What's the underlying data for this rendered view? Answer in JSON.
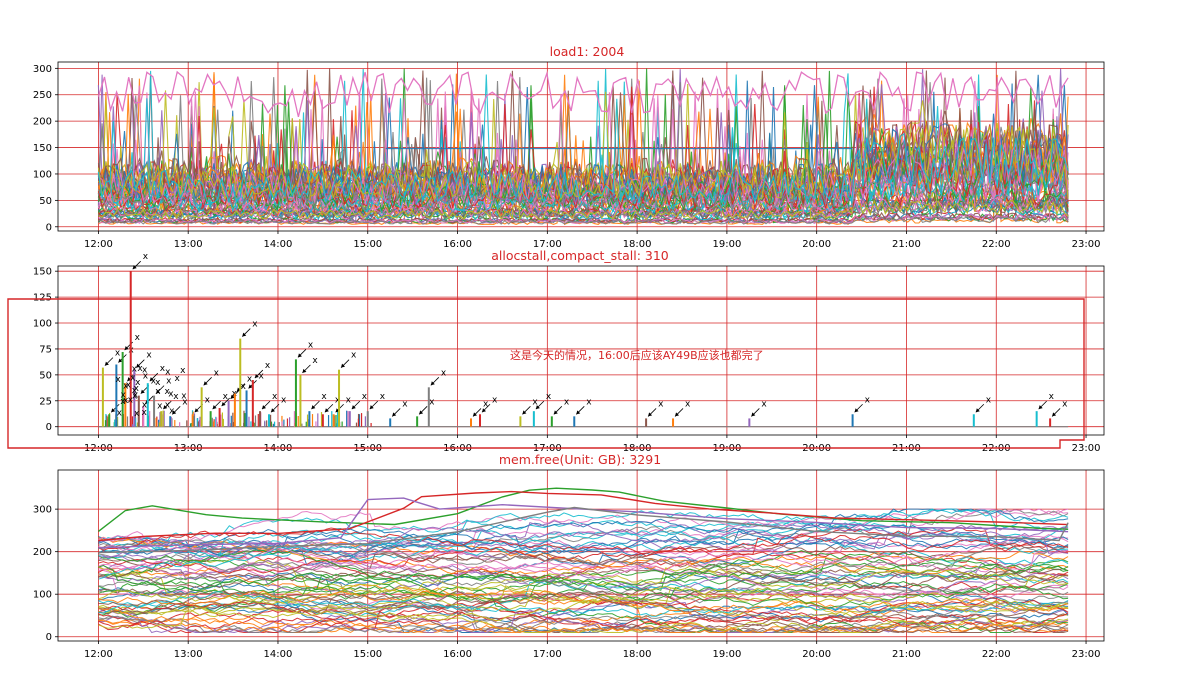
{
  "figure": {
    "x_ticks": [
      "12:00",
      "13:00",
      "14:00",
      "15:00",
      "16:00",
      "17:00",
      "18:00",
      "19:00",
      "20:00",
      "21:00",
      "22:00",
      "23:00"
    ]
  },
  "chart_data": [
    {
      "type": "line",
      "title": "load1: 2004",
      "series_count": 2004,
      "x_range_hours": [
        11.55,
        23.2
      ],
      "data_end_hour": 22.8,
      "ylim": [
        -8,
        312
      ],
      "y_ticks": [
        0,
        50,
        100,
        150,
        200,
        250,
        300
      ],
      "grid": true,
      "grid_color": "#d62728",
      "baseline_top": 60,
      "notes": "Many overlapping series, most between 0 and 150; several spike to the 300 cap; one pink series runs 200-300 across the day."
    },
    {
      "type": "line",
      "title": "allocstall,compact_stall: 310",
      "series_count": 310,
      "x_range_hours": [
        11.55,
        23.2
      ],
      "ylim": [
        -8,
        155
      ],
      "y_ticks": [
        0,
        25,
        50,
        75,
        100,
        125,
        150
      ],
      "grid": true,
      "grid_color": "#d62728",
      "peaks": [
        {
          "t": 12.05,
          "y": 57,
          "c": "#bcbd22"
        },
        {
          "t": 12.12,
          "y": 12,
          "c": "#2ca02c"
        },
        {
          "t": 12.2,
          "y": 60,
          "c": "#1f77b4"
        },
        {
          "t": 12.27,
          "y": 72,
          "c": "#2ca02c"
        },
        {
          "t": 12.3,
          "y": 42,
          "c": "#ff7f0e"
        },
        {
          "t": 12.36,
          "y": 150,
          "c": "#d62728"
        },
        {
          "t": 12.4,
          "y": 55,
          "c": "#9467bd"
        },
        {
          "t": 12.45,
          "y": 30,
          "c": "#8c564b"
        },
        {
          "t": 12.5,
          "y": 20,
          "c": "#e377c2"
        },
        {
          "t": 12.55,
          "y": 42,
          "c": "#17becf"
        },
        {
          "t": 12.62,
          "y": 30,
          "c": "#7f7f7f"
        },
        {
          "t": 12.7,
          "y": 15,
          "c": "#bcbd22"
        },
        {
          "t": 12.8,
          "y": 10,
          "c": "#1f77b4"
        },
        {
          "t": 13.05,
          "y": 12,
          "c": "#ff7f0e"
        },
        {
          "t": 13.15,
          "y": 38,
          "c": "#bcbd22"
        },
        {
          "t": 13.25,
          "y": 15,
          "c": "#2ca02c"
        },
        {
          "t": 13.35,
          "y": 18,
          "c": "#d62728"
        },
        {
          "t": 13.45,
          "y": 25,
          "c": "#9467bd"
        },
        {
          "t": 13.52,
          "y": 32,
          "c": "#ff7f0e"
        },
        {
          "t": 13.58,
          "y": 85,
          "c": "#bcbd22"
        },
        {
          "t": 13.65,
          "y": 35,
          "c": "#1f77b4"
        },
        {
          "t": 13.72,
          "y": 45,
          "c": "#d62728"
        },
        {
          "t": 13.8,
          "y": 15,
          "c": "#8c564b"
        },
        {
          "t": 13.9,
          "y": 12,
          "c": "#17becf"
        },
        {
          "t": 14.2,
          "y": 65,
          "c": "#2ca02c"
        },
        {
          "t": 14.25,
          "y": 50,
          "c": "#bcbd22"
        },
        {
          "t": 14.35,
          "y": 15,
          "c": "#1f77b4"
        },
        {
          "t": 14.5,
          "y": 12,
          "c": "#d62728"
        },
        {
          "t": 14.62,
          "y": 12,
          "c": "#ff7f0e"
        },
        {
          "t": 14.68,
          "y": 55,
          "c": "#bcbd22"
        },
        {
          "t": 14.8,
          "y": 15,
          "c": "#9467bd"
        },
        {
          "t": 15.0,
          "y": 15,
          "c": "#7f7f7f"
        },
        {
          "t": 15.25,
          "y": 8,
          "c": "#1f77b4"
        },
        {
          "t": 15.55,
          "y": 10,
          "c": "#2ca02c"
        },
        {
          "t": 15.68,
          "y": 38,
          "c": "#7f7f7f"
        },
        {
          "t": 16.15,
          "y": 8,
          "c": "#ff7f0e"
        },
        {
          "t": 16.25,
          "y": 12,
          "c": "#d62728"
        },
        {
          "t": 16.7,
          "y": 10,
          "c": "#bcbd22"
        },
        {
          "t": 16.85,
          "y": 15,
          "c": "#17becf"
        },
        {
          "t": 17.05,
          "y": 10,
          "c": "#2ca02c"
        },
        {
          "t": 17.3,
          "y": 10,
          "c": "#1f77b4"
        },
        {
          "t": 18.1,
          "y": 8,
          "c": "#8c564b"
        },
        {
          "t": 18.4,
          "y": 8,
          "c": "#ff7f0e"
        },
        {
          "t": 19.25,
          "y": 8,
          "c": "#9467bd"
        },
        {
          "t": 20.4,
          "y": 12,
          "c": "#1f77b4"
        },
        {
          "t": 21.75,
          "y": 12,
          "c": "#17becf"
        },
        {
          "t": 22.45,
          "y": 15,
          "c": "#17becf"
        },
        {
          "t": 22.6,
          "y": 8,
          "c": "#d62728"
        }
      ],
      "annotation_text": "这是今天的情况，16:00后应该AY49B应该也都完了",
      "annotation_color": "#d62728"
    },
    {
      "type": "line",
      "title": "mem.free(Unit: GB): 3291",
      "series_count": 3291,
      "x_range_hours": [
        11.55,
        23.2
      ],
      "data_end_hour": 22.8,
      "ylim": [
        -10,
        392
      ],
      "y_ticks": [
        0,
        100,
        200,
        300
      ],
      "grid": true,
      "grid_color": "#d62728",
      "highlight_series": [
        {
          "c": "#2ca02c",
          "pts": [
            [
              12.0,
              250
            ],
            [
              12.3,
              300
            ],
            [
              12.6,
              305
            ],
            [
              13.2,
              290
            ],
            [
              13.6,
              280
            ],
            [
              14.5,
              270
            ],
            [
              15.3,
              265
            ],
            [
              16.0,
              290
            ],
            [
              16.5,
              330
            ],
            [
              16.8,
              345
            ],
            [
              17.1,
              350
            ],
            [
              17.5,
              345
            ],
            [
              17.8,
              340
            ],
            [
              18.3,
              320
            ],
            [
              19.0,
              300
            ],
            [
              19.6,
              290
            ],
            [
              20.5,
              270
            ],
            [
              21.5,
              265
            ],
            [
              22.5,
              255
            ],
            [
              22.8,
              255
            ]
          ]
        },
        {
          "c": "#d62728",
          "pts": [
            [
              12.0,
              230
            ],
            [
              12.5,
              235
            ],
            [
              13.3,
              240
            ],
            [
              14.0,
              245
            ],
            [
              14.8,
              250
            ],
            [
              15.4,
              300
            ],
            [
              15.6,
              330
            ],
            [
              16.2,
              340
            ],
            [
              16.6,
              345
            ],
            [
              17.0,
              340
            ],
            [
              17.6,
              330
            ],
            [
              18.2,
              310
            ],
            [
              18.8,
              300
            ],
            [
              19.5,
              290
            ],
            [
              20.2,
              280
            ],
            [
              21.0,
              275
            ],
            [
              22.0,
              270
            ],
            [
              22.8,
              265
            ]
          ]
        },
        {
          "c": "#9467bd",
          "pts": [
            [
              12.0,
              210
            ],
            [
              13.0,
              215
            ],
            [
              14.0,
              220
            ],
            [
              14.7,
              230
            ],
            [
              15.0,
              320
            ],
            [
              15.4,
              325
            ],
            [
              15.8,
              300
            ],
            [
              16.5,
              310
            ],
            [
              17.3,
              300
            ],
            [
              18.0,
              290
            ],
            [
              19.0,
              275
            ],
            [
              20.0,
              265
            ],
            [
              21.0,
              260
            ],
            [
              22.0,
              255
            ],
            [
              22.8,
              250
            ]
          ]
        },
        {
          "c": "#7f7f7f",
          "pts": [
            [
              12.0,
              200
            ],
            [
              13.0,
              205
            ],
            [
              14.0,
              210
            ],
            [
              15.0,
              220
            ],
            [
              16.0,
              250
            ],
            [
              17.0,
              290
            ],
            [
              17.3,
              300
            ],
            [
              18.0,
              285
            ],
            [
              19.0,
              270
            ],
            [
              20.0,
              250
            ],
            [
              21.0,
              240
            ],
            [
              22.0,
              235
            ],
            [
              22.7,
              230
            ],
            [
              22.8,
              270
            ]
          ]
        }
      ]
    }
  ]
}
